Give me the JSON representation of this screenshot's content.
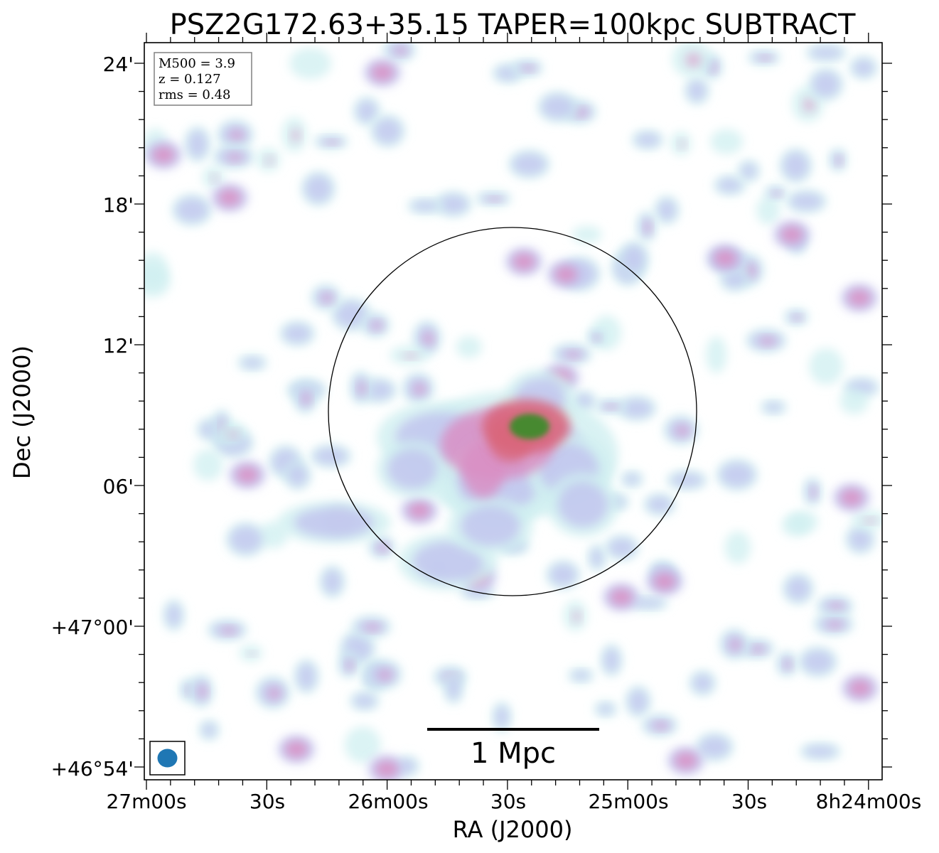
{
  "title": "PSZ2G172.63+35.15 TAPER=100kpc SUBTRACT",
  "x_axis": {
    "label": "RA (J2000)",
    "tick_labels": [
      "27m00s",
      "30s",
      "26m00s",
      "30s",
      "25m00s",
      "30s",
      "8h24m00s"
    ]
  },
  "y_axis": {
    "label": "Dec (J2000)",
    "tick_labels": [
      "24'",
      "18'",
      "12'",
      "06'",
      "+47°00'",
      "+46°54'"
    ]
  },
  "info_box": {
    "line1": "M500 = 3.9",
    "line2": "z = 0.127",
    "line3": "rms = 0.48"
  },
  "scale_bar": {
    "label": "1 Mpc"
  },
  "colors": {
    "low": "#cfeff0",
    "mid": "#c2c6ef",
    "high": "#d98fc4",
    "peak": "#d9657b",
    "core": "#3f8a2a",
    "beam": "#1f77b4"
  }
}
